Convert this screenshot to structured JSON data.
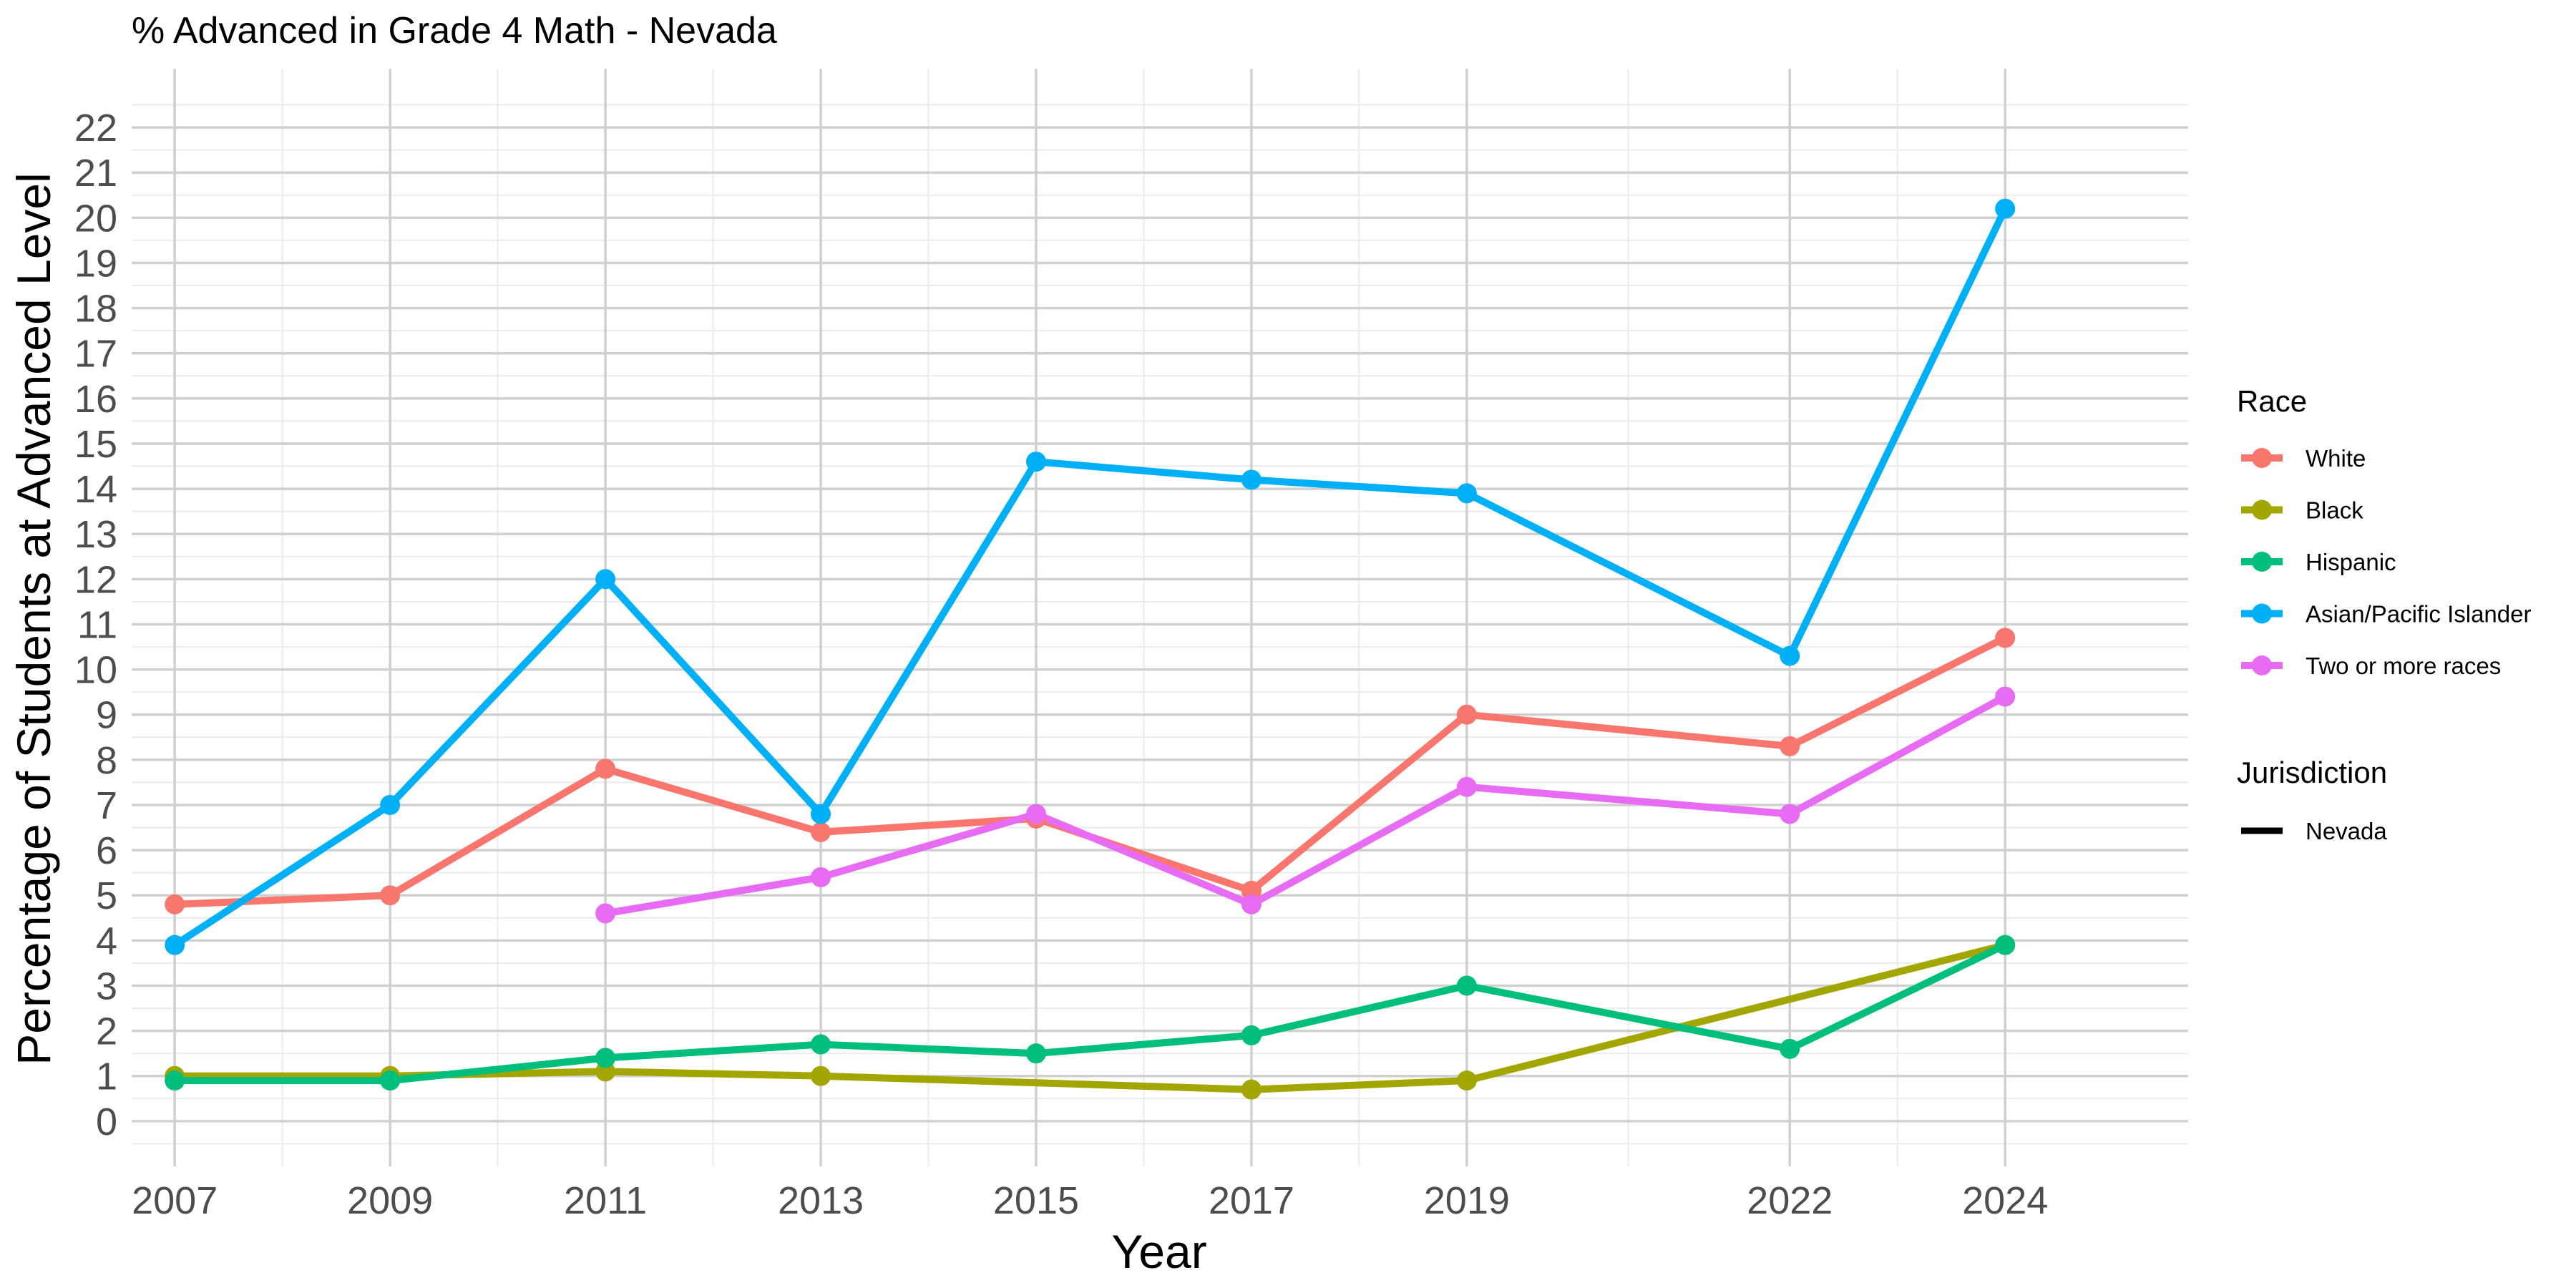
{
  "chart_data": {
    "type": "line",
    "title": "% Advanced in Grade 4 Math - Nevada",
    "xlabel": "Year",
    "ylabel": "Percentage of Students at Advanced Level",
    "x": [
      2007,
      2009,
      2011,
      2013,
      2015,
      2017,
      2019,
      2022,
      2024
    ],
    "x_ticks": [
      "2007",
      "2009",
      "2011",
      "2013",
      "2015",
      "2017",
      "2019",
      "2022",
      "2024"
    ],
    "y_ticks": [
      "0",
      "1",
      "2",
      "3",
      "4",
      "5",
      "6",
      "7",
      "8",
      "9",
      "10",
      "11",
      "12",
      "13",
      "14",
      "15",
      "16",
      "17",
      "18",
      "19",
      "20",
      "21",
      "22"
    ],
    "xlim": [
      2006.6,
      2025.7
    ],
    "ylim": [
      -1,
      23.3
    ],
    "grid": true,
    "legend_position": "right",
    "series": [
      {
        "name": "White",
        "color": "#F8766D",
        "values": [
          4.8,
          5.0,
          7.8,
          6.4,
          6.7,
          5.1,
          9.0,
          8.3,
          10.7
        ]
      },
      {
        "name": "Black",
        "color": "#A3A500",
        "values": [
          1.0,
          1.0,
          1.1,
          1.0,
          null,
          0.7,
          0.9,
          null,
          3.9
        ]
      },
      {
        "name": "Hispanic",
        "color": "#00BF7D",
        "values": [
          0.9,
          0.9,
          1.4,
          1.7,
          1.5,
          1.9,
          3.0,
          1.6,
          3.9
        ]
      },
      {
        "name": "Asian/Pacific Islander",
        "color": "#00B0F6",
        "values": [
          3.9,
          7.0,
          12.0,
          6.8,
          14.6,
          14.2,
          13.9,
          10.3,
          20.2
        ]
      },
      {
        "name": "Two or more races",
        "color": "#E76BF3",
        "values": [
          null,
          null,
          4.6,
          5.4,
          6.8,
          4.8,
          7.4,
          6.8,
          9.4
        ]
      }
    ],
    "legend": {
      "race_title": "Race",
      "jurisdiction_title": "Jurisdiction",
      "jurisdiction_items": [
        {
          "name": "Nevada",
          "color": "#000000"
        }
      ]
    }
  }
}
